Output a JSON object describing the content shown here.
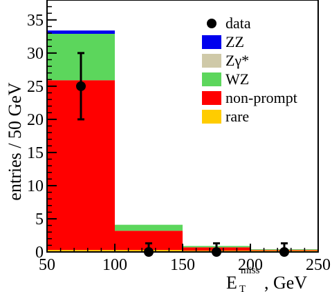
{
  "chart_data": {
    "type": "bar",
    "stacked": true,
    "title": "",
    "xlabel_base": "E",
    "xlabel_sub": "T",
    "xlabel_sup": "miss",
    "xlabel_tail": ", GeV",
    "ylabel": "entries / 50 GeV",
    "xlim": [
      50,
      250
    ],
    "ylim": [
      0,
      38
    ],
    "x_ticks": [
      50,
      100,
      150,
      200,
      250
    ],
    "y_ticks": [
      0,
      5,
      10,
      15,
      20,
      25,
      30,
      35
    ],
    "bin_edges": [
      50,
      100,
      150,
      200,
      250
    ],
    "series": [
      {
        "name": "rare",
        "color": "#ffcc00",
        "values": [
          0.3,
          0.3,
          0.2,
          0.2
        ]
      },
      {
        "name": "non-prompt",
        "color": "#ff0000",
        "values": [
          25.6,
          2.9,
          0.5,
          0.1
        ]
      },
      {
        "name": "WZ",
        "color": "#5cd65c",
        "values": [
          7.0,
          0.9,
          0.2,
          0.1
        ]
      },
      {
        "name": "Zγ*",
        "color": "#cfc9a8",
        "values": [
          0.0,
          0.0,
          0.0,
          0.0
        ]
      },
      {
        "name": "ZZ",
        "color": "#0000ee",
        "values": [
          0.5,
          0.0,
          0.0,
          0.0
        ]
      }
    ],
    "data": {
      "name": "data",
      "x": [
        75,
        125,
        175,
        225
      ],
      "y": [
        25,
        0,
        0,
        0
      ],
      "err_low": [
        5,
        0,
        0,
        0
      ],
      "err_high": [
        5,
        1.3,
        1.3,
        1.3
      ]
    },
    "legend_order": [
      "data",
      "ZZ",
      "Zγ*",
      "WZ",
      "non-prompt",
      "rare"
    ],
    "legend_position": "top-right",
    "grid": false
  }
}
